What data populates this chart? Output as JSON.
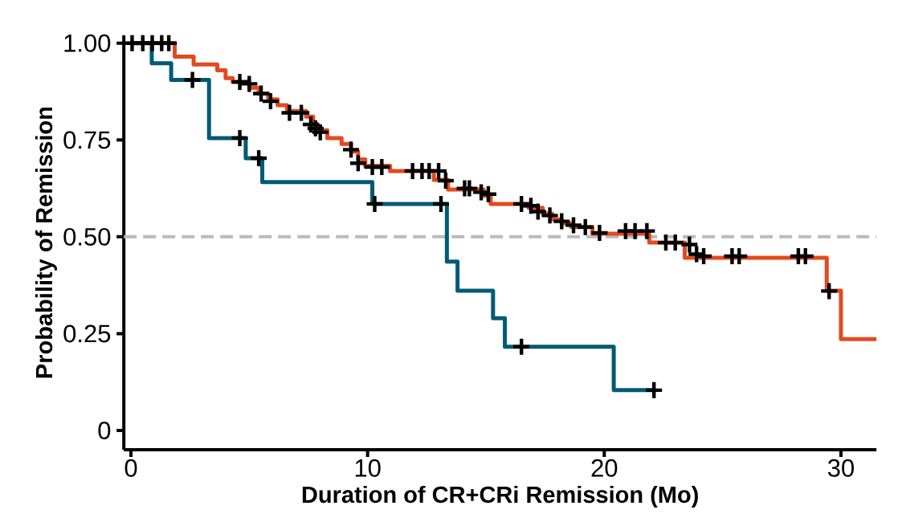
{
  "chart_data": {
    "type": "step",
    "xlabel": "Duration of CR+CRi Remission (Mo)",
    "ylabel": "Probability of Remission",
    "xlim": [
      -0.3,
      31.5
    ],
    "ylim": [
      -0.05,
      1.02
    ],
    "xticks": [
      0,
      10,
      20,
      30
    ],
    "yticks": [
      {
        "value": 0,
        "label": "0"
      },
      {
        "value": 0.25,
        "label": "0.25"
      },
      {
        "value": 0.5,
        "label": "0.50"
      },
      {
        "value": 0.75,
        "label": "0.75"
      },
      {
        "value": 1,
        "label": "1.00"
      }
    ],
    "grid": false,
    "ref_lines": [
      {
        "axis": "y",
        "value": 0.5,
        "color": "#bbbbbb",
        "line_style": "dashed"
      }
    ],
    "series": [
      {
        "color": "#e34a1f",
        "x": [
          0,
          1.85,
          2.65,
          3.65,
          4.0,
          4.3,
          5.0,
          5.4,
          5.8,
          6.2,
          6.6,
          7.4,
          7.7,
          7.9,
          8.3,
          8.9,
          9.3,
          9.6,
          9.9,
          10.95,
          12.8,
          13.4,
          14.9,
          15.2,
          16.8,
          17.4,
          17.8,
          18.2,
          18.6,
          19.5,
          21.9,
          23.4,
          29.4,
          30.0,
          31.5
        ],
        "values": [
          1.0,
          0.965,
          0.945,
          0.93,
          0.91,
          0.9,
          0.885,
          0.87,
          0.855,
          0.84,
          0.825,
          0.81,
          0.79,
          0.775,
          0.755,
          0.74,
          0.72,
          0.7,
          0.683,
          0.67,
          0.647,
          0.622,
          0.606,
          0.585,
          0.575,
          0.56,
          0.545,
          0.535,
          0.525,
          0.508,
          0.485,
          0.446,
          0.361,
          0.236,
          0.236
        ]
      },
      {
        "color": "#005a75",
        "x": [
          0,
          0.88,
          1.7,
          3.3,
          4.85,
          5.55,
          10.2,
          13.35,
          13.8,
          15.3,
          15.8,
          20.4,
          22.1
        ],
        "values": [
          1.0,
          0.948,
          0.905,
          0.755,
          0.703,
          0.641,
          0.585,
          0.436,
          0.361,
          0.29,
          0.216,
          0.104,
          0.104
        ]
      },
      {
        "type": "scatter",
        "color": "#000000",
        "marker": "cross",
        "x": [
          0.05,
          0.5,
          0.9,
          1.3,
          1.6,
          4.6,
          5.0,
          5.5,
          5.9,
          6.7,
          7.2,
          7.6,
          7.8,
          8.0,
          9.3,
          9.6,
          10.2,
          10.6,
          11.9,
          12.3,
          12.6,
          13.0,
          13.3,
          14.1,
          14.3,
          14.8,
          15.1,
          16.5,
          16.9,
          17.2,
          17.7,
          18.2,
          18.7,
          19.2,
          19.8,
          20.9,
          21.3,
          21.8,
          22.6,
          23.0,
          23.6,
          23.9,
          24.2,
          25.4,
          25.7,
          28.2,
          28.5,
          29.5,
          2.6,
          4.6,
          5.4,
          10.3,
          13.1,
          16.5,
          22.1
        ],
        "values": [
          1.0,
          1.0,
          1.0,
          1.0,
          1.0,
          0.9,
          0.895,
          0.87,
          0.85,
          0.82,
          0.82,
          0.79,
          0.78,
          0.77,
          0.725,
          0.69,
          0.68,
          0.68,
          0.67,
          0.67,
          0.67,
          0.67,
          0.645,
          0.625,
          0.625,
          0.615,
          0.61,
          0.585,
          0.58,
          0.565,
          0.555,
          0.54,
          0.53,
          0.525,
          0.51,
          0.515,
          0.515,
          0.515,
          0.485,
          0.485,
          0.48,
          0.455,
          0.45,
          0.45,
          0.45,
          0.45,
          0.45,
          0.36,
          0.905,
          0.755,
          0.703,
          0.585,
          0.585,
          0.216,
          0.104
        ]
      }
    ]
  }
}
